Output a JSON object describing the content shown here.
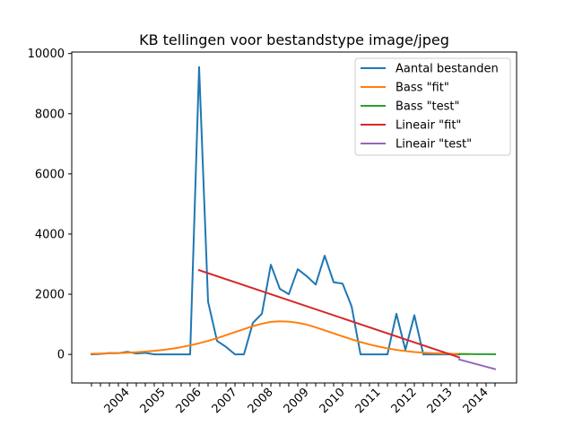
{
  "chart_data": {
    "type": "line",
    "title": "KB tellingen voor bestandstype image/jpeg",
    "xlabel": "",
    "ylabel": "",
    "x_tick_labels": [
      "2004",
      "2005",
      "2006",
      "2007",
      "2008",
      "2009",
      "2010",
      "2011",
      "2012",
      "2013",
      "2014"
    ],
    "x_tick_positions": [
      4,
      8,
      12,
      16,
      20,
      24,
      28,
      32,
      36,
      40,
      44
    ],
    "x_minor_ticks": [
      0,
      1,
      2,
      3,
      4,
      5,
      6,
      7,
      8,
      9,
      10,
      11,
      12,
      13,
      14,
      15,
      16,
      17,
      18,
      19,
      20,
      21,
      22,
      23,
      24,
      25,
      26,
      27,
      28,
      29,
      30,
      31,
      32,
      33,
      34,
      35,
      36,
      37,
      38,
      39,
      40,
      41,
      42,
      43,
      44,
      45
    ],
    "xlim": [
      -2.2,
      47.4
    ],
    "y_ticks": [
      0,
      2000,
      4000,
      6000,
      8000,
      10000
    ],
    "ylim": [
      -950,
      10050
    ],
    "grid": false,
    "legend_position": "top-right",
    "series": [
      {
        "name": "Aantal bestanden",
        "color": "#1f77b4",
        "x": [
          0,
          1,
          2,
          3,
          4,
          5,
          6,
          7,
          8,
          9,
          10,
          11,
          12,
          13,
          14,
          15,
          16,
          17,
          18,
          19,
          20,
          21,
          22,
          23,
          24,
          25,
          26,
          27,
          28,
          29,
          30,
          31,
          32,
          33,
          34,
          35,
          36,
          37,
          38,
          39,
          40,
          41
        ],
        "y": [
          0,
          15,
          45,
          40,
          85,
          30,
          50,
          0,
          0,
          0,
          0,
          0,
          9550,
          1750,
          450,
          250,
          0,
          0,
          1050,
          1350,
          2980,
          2180,
          2000,
          2830,
          2600,
          2320,
          3280,
          2400,
          2350,
          1600,
          0,
          0,
          0,
          0,
          1350,
          150,
          1300,
          0,
          0,
          0,
          0,
          0
        ]
      },
      {
        "name": "Bass \"fit\"",
        "color": "#ff7f0e",
        "x": [
          0,
          1,
          2,
          3,
          4,
          5,
          6,
          7,
          8,
          9,
          10,
          11,
          12,
          13,
          14,
          15,
          16,
          17,
          18,
          19,
          20,
          21,
          22,
          23,
          24,
          25,
          26,
          27,
          28,
          29,
          30,
          31,
          32,
          33,
          34,
          35,
          36,
          37,
          38,
          39,
          40,
          41,
          42
        ],
        "y": [
          20,
          26,
          34,
          44,
          56,
          72,
          92,
          118,
          150,
          190,
          240,
          300,
          370,
          450,
          540,
          640,
          740,
          840,
          940,
          1020,
          1080,
          1100,
          1090,
          1050,
          990,
          900,
          800,
          700,
          600,
          500,
          410,
          330,
          260,
          200,
          150,
          110,
          80,
          58,
          42,
          30,
          21,
          15,
          10
        ]
      },
      {
        "name": "Bass \"test\"",
        "color": "#2ca02c",
        "x": [
          41,
          42,
          43,
          44,
          45
        ],
        "y": [
          12,
          10,
          8,
          6,
          5
        ]
      },
      {
        "name": "Lineair \"fit\"",
        "color": "#d62728",
        "x": [
          12,
          41
        ],
        "y": [
          2800,
          -100
        ]
      },
      {
        "name": "Lineair \"test\"",
        "color": "#9467bd",
        "x": [
          41,
          45
        ],
        "y": [
          -170,
          -490
        ]
      }
    ]
  }
}
